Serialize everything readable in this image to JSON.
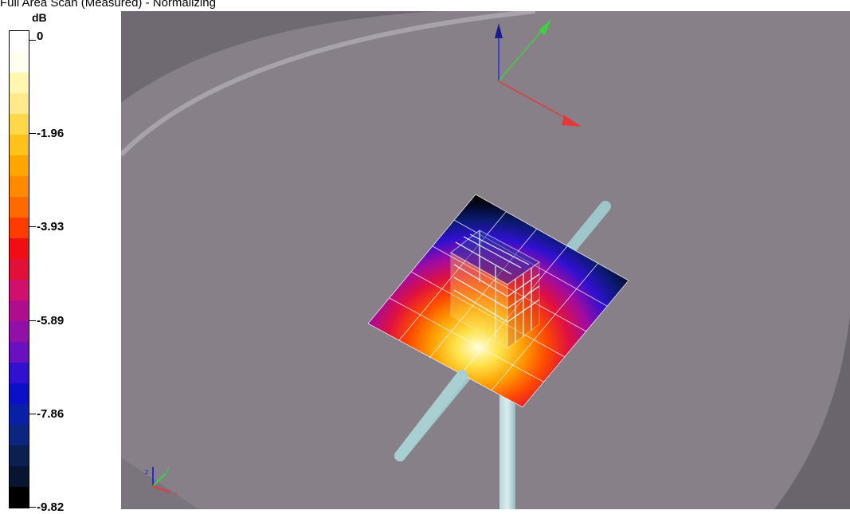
{
  "title": "Full Area Scan (Measured) - Normalizing",
  "legend": {
    "unit": "dB",
    "ticks": [
      {
        "label": "0",
        "pos": 0
      },
      {
        "label": "-1.96",
        "pos": 0.2
      },
      {
        "label": "-3.93",
        "pos": 0.4
      },
      {
        "label": "-5.89",
        "pos": 0.6
      },
      {
        "label": "-7.86",
        "pos": 0.8
      },
      {
        "label": "-9.82",
        "pos": 1.0
      }
    ],
    "colors": [
      "#ffffff",
      "#fffff0",
      "#fff7b0",
      "#ffe98a",
      "#ffd84a",
      "#ffc21a",
      "#ffa500",
      "#ff8a00",
      "#ff6a00",
      "#ff3c00",
      "#f00e14",
      "#e0103a",
      "#d0106c",
      "#b00c8e",
      "#9010a8",
      "#6a10c0",
      "#3210d0",
      "#0b10c8",
      "#0a1fa8",
      "#0c2680",
      "#0b2050",
      "#081530",
      "#000000"
    ]
  },
  "scene": {
    "axis_colors": {
      "x": "#e23a3a",
      "y": "#3fd03f",
      "z": "#2828e0"
    },
    "mini_axis_labels": {
      "x": "x",
      "y": "y",
      "z": "z"
    }
  }
}
